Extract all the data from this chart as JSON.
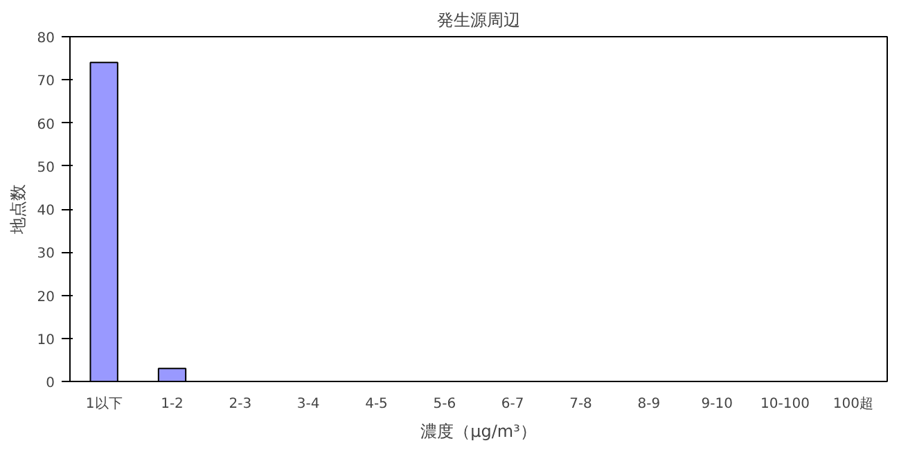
{
  "chart_data": {
    "type": "bar",
    "title": "発生源周辺",
    "xlabel": "濃度（μg/m³）",
    "ylabel": "地点数",
    "categories": [
      "1以下",
      "1-2",
      "2-3",
      "3-4",
      "4-5",
      "5-6",
      "6-7",
      "7-8",
      "8-9",
      "9-10",
      "10-100",
      "100超"
    ],
    "values": [
      74,
      3,
      0,
      0,
      0,
      0,
      0,
      0,
      0,
      0,
      0,
      0
    ],
    "color": "#9999ff",
    "ylim": [
      0,
      80
    ],
    "yticks": [
      0,
      10,
      20,
      30,
      40,
      50,
      60,
      70,
      80
    ],
    "grid": false
  }
}
